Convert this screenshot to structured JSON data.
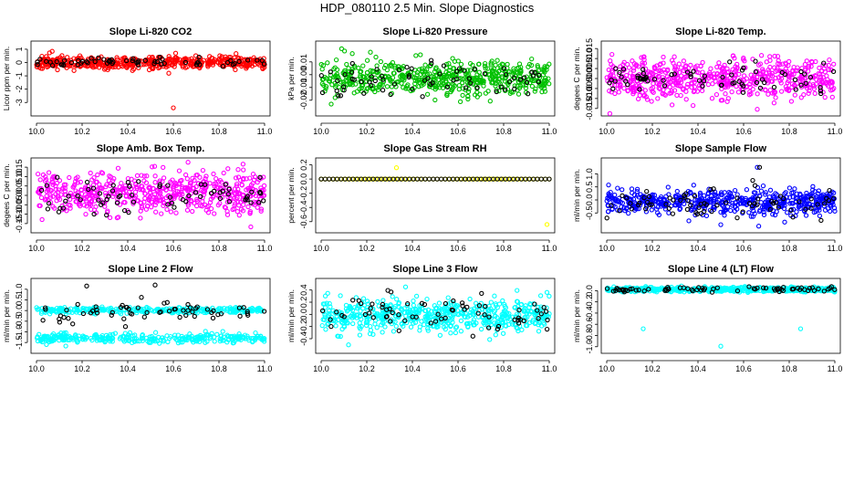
{
  "figure_title": "HDP_080110  2.5 Min. Slope Diagnostics",
  "colors": {
    "co2": "#ff0000",
    "pressure": "#00c000",
    "temp": "#ff00ff",
    "box_temp": "#ff00ff",
    "rh": "#ffff00",
    "sample_flow": "#0000ff",
    "line2": "#00ffff",
    "line3": "#00ffff",
    "line4": "#00ffff",
    "marker_black": "#000000"
  },
  "chart_data": [
    {
      "type": "scatter",
      "title": "Slope Li-820 CO2",
      "ylabel": "Licor ppm per min.",
      "xlim": [
        10.0,
        11.0
      ],
      "ylim": [
        -3.6,
        1.2
      ],
      "xticks": [
        10.0,
        10.2,
        10.4,
        10.6,
        10.8,
        11.0
      ],
      "xtick_labels": [
        "10.0",
        "10.2",
        "10.4",
        "10.6",
        "10.8",
        "11.0"
      ],
      "yticks": [
        -3,
        -2,
        -1,
        0,
        1
      ],
      "ytick_labels": [
        "-3",
        "-2",
        "-1",
        "0",
        "1"
      ],
      "series": [
        {
          "name": "all",
          "color_key": "co2",
          "count": 500,
          "center": 0.0,
          "spread": 0.28,
          "shape": "flat",
          "seed": 11,
          "outliers": [
            {
              "x": 10.6,
              "y": -3.4
            },
            {
              "x": 10.58,
              "y": -0.8
            },
            {
              "x": 10.61,
              "y": 0.7
            }
          ]
        },
        {
          "name": "flagged",
          "color_key": "marker_black",
          "count": 60,
          "center": 0.05,
          "spread": 0.22,
          "shape": "flat",
          "seed": 12,
          "outliers": []
        }
      ]
    },
    {
      "type": "scatter",
      "title": "Slope Li-820 Pressure",
      "ylabel": "kPa per min.",
      "xlim": [
        10.0,
        11.0
      ],
      "ylim": [
        -0.028,
        0.022
      ],
      "xticks": [
        10.0,
        10.2,
        10.4,
        10.6,
        10.8,
        11.0
      ],
      "xtick_labels": [
        "10.0",
        "10.2",
        "10.4",
        "10.6",
        "10.8",
        "11.0"
      ],
      "yticks": [
        -0.02,
        -0.01,
        0.0,
        0.01
      ],
      "ytick_labels": [
        "-0.02",
        "-0.01",
        "0.00",
        "0.01"
      ],
      "series": [
        {
          "name": "all",
          "color_key": "pressure",
          "count": 560,
          "center": -0.002,
          "spread": 0.008,
          "shape": "flat",
          "seed": 21,
          "outliers": []
        },
        {
          "name": "flagged",
          "color_key": "marker_black",
          "count": 70,
          "center": -0.004,
          "spread": 0.008,
          "shape": "flat",
          "seed": 22,
          "outliers": []
        }
      ]
    },
    {
      "type": "scatter",
      "title": "Slope Li-820 Temp.",
      "ylabel": "degees C per min.",
      "xlim": [
        10.0,
        11.0
      ],
      "ylim": [
        -0.016,
        0.016
      ],
      "xticks": [
        10.0,
        10.2,
        10.4,
        10.6,
        10.8,
        11.0
      ],
      "xtick_labels": [
        "10.0",
        "10.2",
        "10.4",
        "10.6",
        "10.8",
        "11.0"
      ],
      "yticks": [
        -0.015,
        -0.01,
        -0.005,
        0.0,
        0.005,
        0.01,
        0.015
      ],
      "ytick_labels": [
        "-0.015",
        "-0.010",
        "-0.005",
        "0.000",
        "0.005",
        "0.010",
        "0.015"
      ],
      "series": [
        {
          "name": "all",
          "color_key": "temp",
          "count": 580,
          "center": 0.0,
          "spread": 0.006,
          "shape": "flat",
          "seed": 31,
          "outliers": []
        },
        {
          "name": "flagged",
          "color_key": "marker_black",
          "count": 70,
          "center": 0.0,
          "spread": 0.005,
          "shape": "flat",
          "seed": 32,
          "outliers": []
        }
      ]
    },
    {
      "type": "scatter",
      "title": "Slope Amb. Box Temp.",
      "ylabel": "degees C per min.",
      "xlim": [
        10.0,
        11.0
      ],
      "ylim": [
        -0.17,
        0.17
      ],
      "xticks": [
        10.0,
        10.2,
        10.4,
        10.6,
        10.8,
        11.0
      ],
      "xtick_labels": [
        "10.0",
        "10.2",
        "10.4",
        "10.6",
        "10.8",
        "11.0"
      ],
      "yticks": [
        -0.15,
        -0.1,
        -0.05,
        0.0,
        0.05,
        0.1,
        0.15
      ],
      "ytick_labels": [
        "-0.15",
        "-0.10",
        "-0.05",
        "0.00",
        "0.05",
        "0.10",
        "0.15"
      ],
      "series": [
        {
          "name": "all",
          "color_key": "box_temp",
          "count": 560,
          "center": 0.01,
          "spread": 0.065,
          "shape": "flat",
          "seed": 41,
          "outliers": []
        },
        {
          "name": "flagged",
          "color_key": "marker_black",
          "count": 70,
          "center": 0.0,
          "spread": 0.06,
          "shape": "flat",
          "seed": 42,
          "outliers": []
        }
      ]
    },
    {
      "type": "scatter",
      "title": "Slope Gas Stream RH",
      "ylabel": "percent per min.",
      "xlim": [
        10.0,
        11.0
      ],
      "ylim": [
        -0.68,
        0.22
      ],
      "xticks": [
        10.0,
        10.2,
        10.4,
        10.6,
        10.8,
        11.0
      ],
      "xtick_labels": [
        "10.0",
        "10.2",
        "10.4",
        "10.6",
        "10.8",
        "11.0"
      ],
      "yticks": [
        -0.6,
        -0.4,
        -0.2,
        0.0,
        0.2
      ],
      "ytick_labels": [
        "-0.6",
        "-0.4",
        "-0.2",
        "0.0",
        "0.2"
      ],
      "series": [
        {
          "name": "all",
          "color_key": "rh",
          "count": 60,
          "center": 0.0,
          "spread": 0.0,
          "shape": "flat",
          "seed": 51,
          "outliers": [
            {
              "x": 10.33,
              "y": 0.16
            },
            {
              "x": 10.99,
              "y": -0.64
            },
            {
              "x": 10.0,
              "y": 0.0
            }
          ]
        },
        {
          "name": "flagged",
          "color_key": "marker_black",
          "count": 58,
          "center": 0.0,
          "spread": 0.0,
          "shape": "flat",
          "seed": 52,
          "outliers": []
        }
      ]
    },
    {
      "type": "scatter",
      "title": "Slope Sample Flow",
      "ylabel": "ml/min per min.",
      "xlim": [
        10.0,
        11.0
      ],
      "ylim": [
        -1.05,
        1.4
      ],
      "xticks": [
        10.0,
        10.2,
        10.4,
        10.6,
        10.8,
        11.0
      ],
      "xtick_labels": [
        "10.0",
        "10.2",
        "10.4",
        "10.6",
        "10.8",
        "11.0"
      ],
      "yticks": [
        -0.5,
        0.0,
        0.5,
        1.0
      ],
      "ytick_labels": [
        "-0.5",
        "0.0",
        "0.5",
        "1.0"
      ],
      "series": [
        {
          "name": "all",
          "color_key": "sample_flow",
          "count": 540,
          "center": -0.05,
          "spread": 0.28,
          "shape": "flat",
          "seed": 61,
          "outliers": [
            {
              "x": 10.5,
              "y": -0.95
            },
            {
              "x": 10.78,
              "y": -0.85
            },
            {
              "x": 10.66,
              "y": 1.25
            },
            {
              "x": 10.36,
              "y": -0.8
            }
          ]
        },
        {
          "name": "flagged",
          "color_key": "marker_black",
          "count": 70,
          "center": -0.15,
          "spread": 0.3,
          "shape": "flat",
          "seed": 62,
          "outliers": [
            {
              "x": 10.67,
              "y": 1.25
            },
            {
              "x": 10.64,
              "y": 0.75
            },
            {
              "x": 10.65,
              "y": 0.55
            }
          ]
        }
      ]
    },
    {
      "type": "scatter",
      "title": "Slope Line 2 Flow",
      "ylabel": "ml/min per min.",
      "xlim": [
        10.0,
        11.0
      ],
      "ylim": [
        -1.75,
        1.25
      ],
      "xticks": [
        10.0,
        10.2,
        10.4,
        10.6,
        10.8,
        11.0
      ],
      "xtick_labels": [
        "10.0",
        "10.2",
        "10.4",
        "10.6",
        "10.8",
        "11.0"
      ],
      "yticks": [
        -1.5,
        -1.0,
        -0.5,
        0.0,
        0.5,
        1.0
      ],
      "ytick_labels": [
        "-1.5",
        "-1.0",
        "-0.5",
        "0.0",
        "0.5",
        "1.0"
      ],
      "series": [
        {
          "name": "upper band",
          "color_key": "line2",
          "count": 300,
          "center": 0.02,
          "spread": 0.08,
          "shape": "flat",
          "seed": 71,
          "outliers": []
        },
        {
          "name": "lower band",
          "color_key": "line2",
          "count": 320,
          "center": -1.3,
          "spread": 0.13,
          "shape": "flat",
          "seed": 72,
          "outliers": []
        },
        {
          "name": "flagged",
          "color_key": "marker_black",
          "count": 60,
          "center": 0.0,
          "spread": 0.25,
          "shape": "flat",
          "seed": 73,
          "outliers": [
            {
              "x": 10.22,
              "y": 1.15
            },
            {
              "x": 10.52,
              "y": 1.2
            },
            {
              "x": 10.46,
              "y": 0.62
            },
            {
              "x": 10.39,
              "y": -0.75
            }
          ]
        }
      ]
    },
    {
      "type": "scatter",
      "title": "Slope Line 3 Flow",
      "ylabel": "ml/min per min.",
      "xlim": [
        10.0,
        11.0
      ],
      "ylim": [
        -0.55,
        0.5
      ],
      "xticks": [
        10.0,
        10.2,
        10.4,
        10.6,
        10.8,
        11.0
      ],
      "xtick_labels": [
        "10.0",
        "10.2",
        "10.4",
        "10.6",
        "10.8",
        "11.0"
      ],
      "yticks": [
        -0.4,
        -0.2,
        0.0,
        0.2,
        0.4
      ],
      "ytick_labels": [
        "-0.4",
        "-0.2",
        "0.0",
        "0.2",
        "0.4"
      ],
      "series": [
        {
          "name": "all",
          "color_key": "line3",
          "count": 560,
          "center": -0.02,
          "spread": 0.16,
          "shape": "flat",
          "seed": 81,
          "outliers": [
            {
              "x": 10.12,
              "y": -0.5
            },
            {
              "x": 10.37,
              "y": 0.45
            },
            {
              "x": 10.99,
              "y": 0.36
            }
          ]
        },
        {
          "name": "flagged",
          "color_key": "marker_black",
          "count": 70,
          "center": 0.0,
          "spread": 0.17,
          "shape": "flat",
          "seed": 82,
          "outliers": []
        }
      ]
    },
    {
      "type": "scatter",
      "title": "Slope Line 4 (LT) Flow",
      "ylabel": "ml/min per min.",
      "xlim": [
        10.0,
        11.0
      ],
      "ylim": [
        -1.02,
        0.12
      ],
      "xticks": [
        10.0,
        10.2,
        10.4,
        10.6,
        10.8,
        11.0
      ],
      "xtick_labels": [
        "10.0",
        "10.2",
        "10.4",
        "10.6",
        "10.8",
        "11.0"
      ],
      "yticks": [
        -1.0,
        -0.8,
        -0.6,
        -0.4,
        -0.2,
        0.0
      ],
      "ytick_labels": [
        "-1.0",
        "-0.8",
        "-0.6",
        "-0.4",
        "-0.2",
        "0.0"
      ],
      "series": [
        {
          "name": "all",
          "color_key": "line4",
          "count": 520,
          "center": 0.02,
          "spread": 0.025,
          "shape": "flat",
          "seed": 91,
          "outliers": [
            {
              "x": 10.16,
              "y": -0.68
            },
            {
              "x": 10.5,
              "y": -0.99
            },
            {
              "x": 10.85,
              "y": -0.68
            }
          ]
        },
        {
          "name": "flagged",
          "color_key": "marker_black",
          "count": 70,
          "center": 0.02,
          "spread": 0.028,
          "shape": "flat",
          "seed": 92,
          "outliers": []
        }
      ]
    }
  ]
}
